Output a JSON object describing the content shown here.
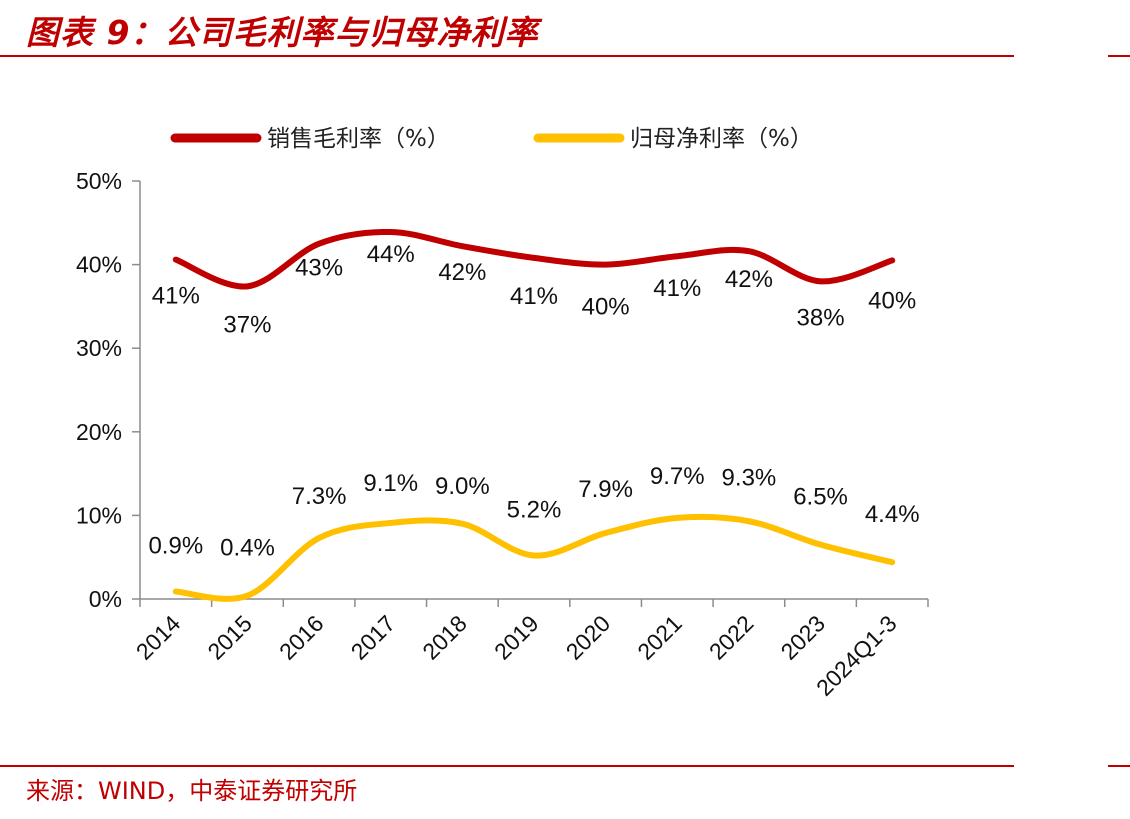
{
  "header": {
    "title": "图表 9：公司毛利率与归母净利率"
  },
  "footer": {
    "source": "来源：WIND，中泰证券研究所"
  },
  "colors": {
    "accent": "#c00000",
    "gross_margin_line": "#c00000",
    "net_margin_line": "#ffc000",
    "axis": "#8c8c8c"
  },
  "chart_data": {
    "type": "line",
    "categories": [
      "2014",
      "2015",
      "2016",
      "2017",
      "2018",
      "2019",
      "2020",
      "2021",
      "2022",
      "2023",
      "2024Q1-3"
    ],
    "ylim": [
      0,
      50
    ],
    "yticks": [
      "0%",
      "10%",
      "20%",
      "30%",
      "40%",
      "50%"
    ],
    "ytick_values": [
      0,
      10,
      20,
      30,
      40,
      50
    ],
    "legend_position": "top",
    "grid": false,
    "series": [
      {
        "name": "销售毛利率（%）",
        "color": "#c00000",
        "values": [
          40.6,
          37.4,
          42.5,
          43.9,
          42.2,
          40.8,
          40.0,
          41.0,
          41.6,
          38.0,
          40.5
        ],
        "labels": [
          "41%",
          "37%",
          "43%",
          "44%",
          "42%",
          "41%",
          "40%",
          "41%",
          "42%",
          "38%",
          "40%"
        ]
      },
      {
        "name": "归母净利率（%）",
        "color": "#ffc000",
        "values": [
          0.9,
          0.4,
          7.3,
          9.1,
          9.0,
          5.2,
          7.9,
          9.7,
          9.3,
          6.5,
          4.4
        ],
        "labels": [
          "0.9%",
          "0.4%",
          "7.3%",
          "9.1%",
          "9.0%",
          "5.2%",
          "7.9%",
          "9.7%",
          "9.3%",
          "6.5%",
          "4.4%"
        ]
      }
    ]
  }
}
